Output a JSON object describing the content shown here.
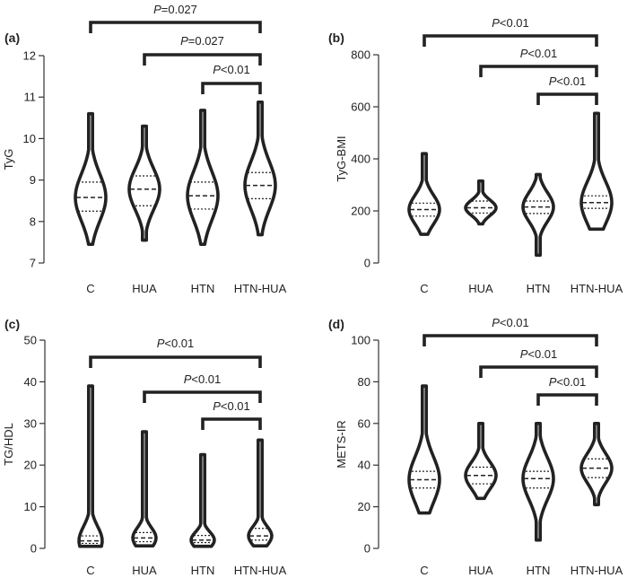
{
  "figure": {
    "panels": [
      {
        "letter": "(a)",
        "ylabel": "TyG",
        "ylim": [
          7,
          12
        ],
        "yticks": [
          "7",
          "8",
          "9",
          "10",
          "11",
          "12"
        ],
        "ytick_values": [
          7,
          8,
          9,
          10,
          11,
          12
        ]
      },
      {
        "letter": "(b)",
        "ylabel": "TyG-BMI",
        "ylim": [
          0,
          800
        ],
        "yticks": [
          "0",
          "200",
          "400",
          "600",
          "800"
        ],
        "ytick_values": [
          0,
          200,
          400,
          600,
          800
        ]
      },
      {
        "letter": "(c)",
        "ylabel": "TG/HDL",
        "ylim": [
          0,
          50
        ],
        "yticks": [
          "0",
          "10",
          "20",
          "30",
          "40",
          "50"
        ],
        "ytick_values": [
          0,
          10,
          20,
          30,
          40,
          50
        ]
      },
      {
        "letter": "(d)",
        "ylabel": "METS-IR",
        "ylim": [
          0,
          100
        ],
        "yticks": [
          "0",
          "20",
          "40",
          "60",
          "80",
          "100"
        ],
        "ytick_values": [
          0,
          20,
          40,
          60,
          80,
          100
        ]
      }
    ]
  },
  "chart_data": [
    {
      "type": "violin",
      "panel": "(a)",
      "ylabel": "TyG",
      "ylim": [
        7,
        12
      ],
      "categories": [
        "C",
        "HUA",
        "HTN",
        "HTN-HUA"
      ],
      "groups": [
        {
          "name": "C",
          "min": 7.45,
          "q1": 8.25,
          "median": 8.58,
          "q3": 8.95,
          "max": 10.6
        },
        {
          "name": "HUA",
          "min": 7.55,
          "q1": 8.38,
          "median": 8.78,
          "q3": 9.1,
          "max": 10.3
        },
        {
          "name": "HTN",
          "min": 7.45,
          "q1": 8.3,
          "median": 8.62,
          "q3": 8.95,
          "max": 10.68
        },
        {
          "name": "HTN-HUA",
          "min": 7.68,
          "q1": 8.55,
          "median": 8.87,
          "q3": 9.18,
          "max": 10.88
        }
      ],
      "comparisons": [
        {
          "from": "C",
          "to": "HTN-HUA",
          "p_symbol": "P",
          "p_text": "=0.027"
        },
        {
          "from": "HUA",
          "to": "HTN-HUA",
          "p_symbol": "P",
          "p_text": "=0.027"
        },
        {
          "from": "HTN",
          "to": "HTN-HUA",
          "p_symbol": "P",
          "p_text": "<0.01"
        }
      ]
    },
    {
      "type": "violin",
      "panel": "(b)",
      "ylabel": "TyG-BMI",
      "ylim": [
        0,
        800
      ],
      "categories": [
        "C",
        "HUA",
        "HTN",
        "HTN-HUA"
      ],
      "groups": [
        {
          "name": "C",
          "min": 110,
          "q1": 180,
          "median": 205,
          "q3": 230,
          "max": 420
        },
        {
          "name": "HUA",
          "min": 150,
          "q1": 192,
          "median": 212,
          "q3": 238,
          "max": 315
        },
        {
          "name": "HTN",
          "min": 30,
          "q1": 190,
          "median": 215,
          "q3": 238,
          "max": 340
        },
        {
          "name": "HTN-HUA",
          "min": 130,
          "q1": 210,
          "median": 232,
          "q3": 258,
          "max": 575
        }
      ],
      "comparisons": [
        {
          "from": "C",
          "to": "HTN-HUA",
          "p_symbol": "P",
          "p_text": "<0.01"
        },
        {
          "from": "HUA",
          "to": "HTN-HUA",
          "p_symbol": "P",
          "p_text": "<0.01"
        },
        {
          "from": "HTN",
          "to": "HTN-HUA",
          "p_symbol": "P",
          "p_text": "<0.01"
        }
      ]
    },
    {
      "type": "violin",
      "panel": "(c)",
      "ylabel": "TG/HDL",
      "ylim": [
        0,
        50
      ],
      "categories": [
        "C",
        "HUA",
        "HTN",
        "HTN-HUA"
      ],
      "groups": [
        {
          "name": "C",
          "min": 0.5,
          "q1": 1.2,
          "median": 1.8,
          "q3": 3.0,
          "max": 39
        },
        {
          "name": "HUA",
          "min": 0.6,
          "q1": 1.6,
          "median": 2.5,
          "q3": 3.8,
          "max": 28
        },
        {
          "name": "HTN",
          "min": 0.5,
          "q1": 1.4,
          "median": 2.0,
          "q3": 3.1,
          "max": 22.5
        },
        {
          "name": "HTN-HUA",
          "min": 0.6,
          "q1": 2.0,
          "median": 3.0,
          "q3": 4.8,
          "max": 26
        }
      ],
      "comparisons": [
        {
          "from": "C",
          "to": "HTN-HUA",
          "p_symbol": "P",
          "p_text": "<0.01"
        },
        {
          "from": "HUA",
          "to": "HTN-HUA",
          "p_symbol": "P",
          "p_text": "<0.01"
        },
        {
          "from": "HTN",
          "to": "HTN-HUA",
          "p_symbol": "P",
          "p_text": "<0.01"
        }
      ]
    },
    {
      "type": "violin",
      "panel": "(d)",
      "ylabel": "METS-IR",
      "ylim": [
        0,
        100
      ],
      "categories": [
        "C",
        "HUA",
        "HTN",
        "HTN-HUA"
      ],
      "groups": [
        {
          "name": "C",
          "min": 17,
          "q1": 29,
          "median": 33,
          "q3": 37,
          "max": 78
        },
        {
          "name": "HUA",
          "min": 24,
          "q1": 31,
          "median": 35,
          "q3": 39,
          "max": 60
        },
        {
          "name": "HTN",
          "min": 4,
          "q1": 29,
          "median": 33.5,
          "q3": 37,
          "max": 60
        },
        {
          "name": "HTN-HUA",
          "min": 21,
          "q1": 34,
          "median": 38.5,
          "q3": 43,
          "max": 60
        }
      ],
      "comparisons": [
        {
          "from": "C",
          "to": "HTN-HUA",
          "p_symbol": "P",
          "p_text": "<0.01"
        },
        {
          "from": "HUA",
          "to": "HTN-HUA",
          "p_symbol": "P",
          "p_text": "<0.01"
        },
        {
          "from": "HTN",
          "to": "HTN-HUA",
          "p_symbol": "P",
          "p_text": "<0.01"
        }
      ]
    }
  ]
}
